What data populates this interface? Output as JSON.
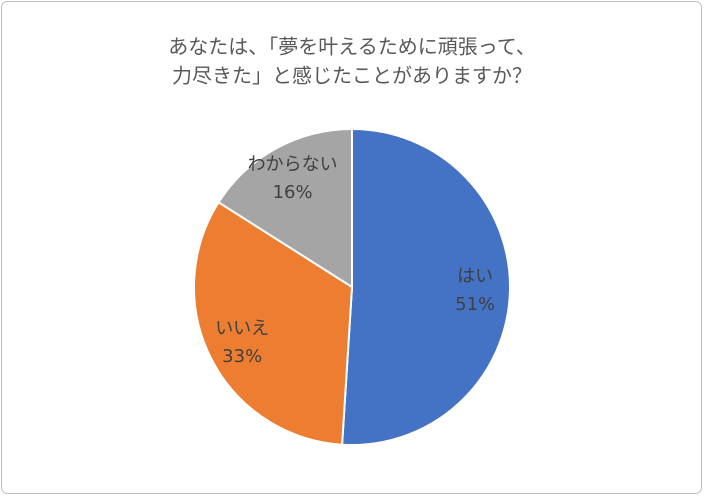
{
  "chart_data": {
    "type": "pie",
    "title": [
      "あなたは、「夢を叶えるために頑張って、",
      "力尽きた」と感じたことがありますか？"
    ],
    "categories": [
      "はい",
      "いいえ",
      "わからない"
    ],
    "values": [
      51,
      33,
      16
    ],
    "value_labels": [
      "51%",
      "33%",
      "16%"
    ],
    "colors": [
      "#4472c4",
      "#ed7d31",
      "#a5a5a5"
    ]
  }
}
